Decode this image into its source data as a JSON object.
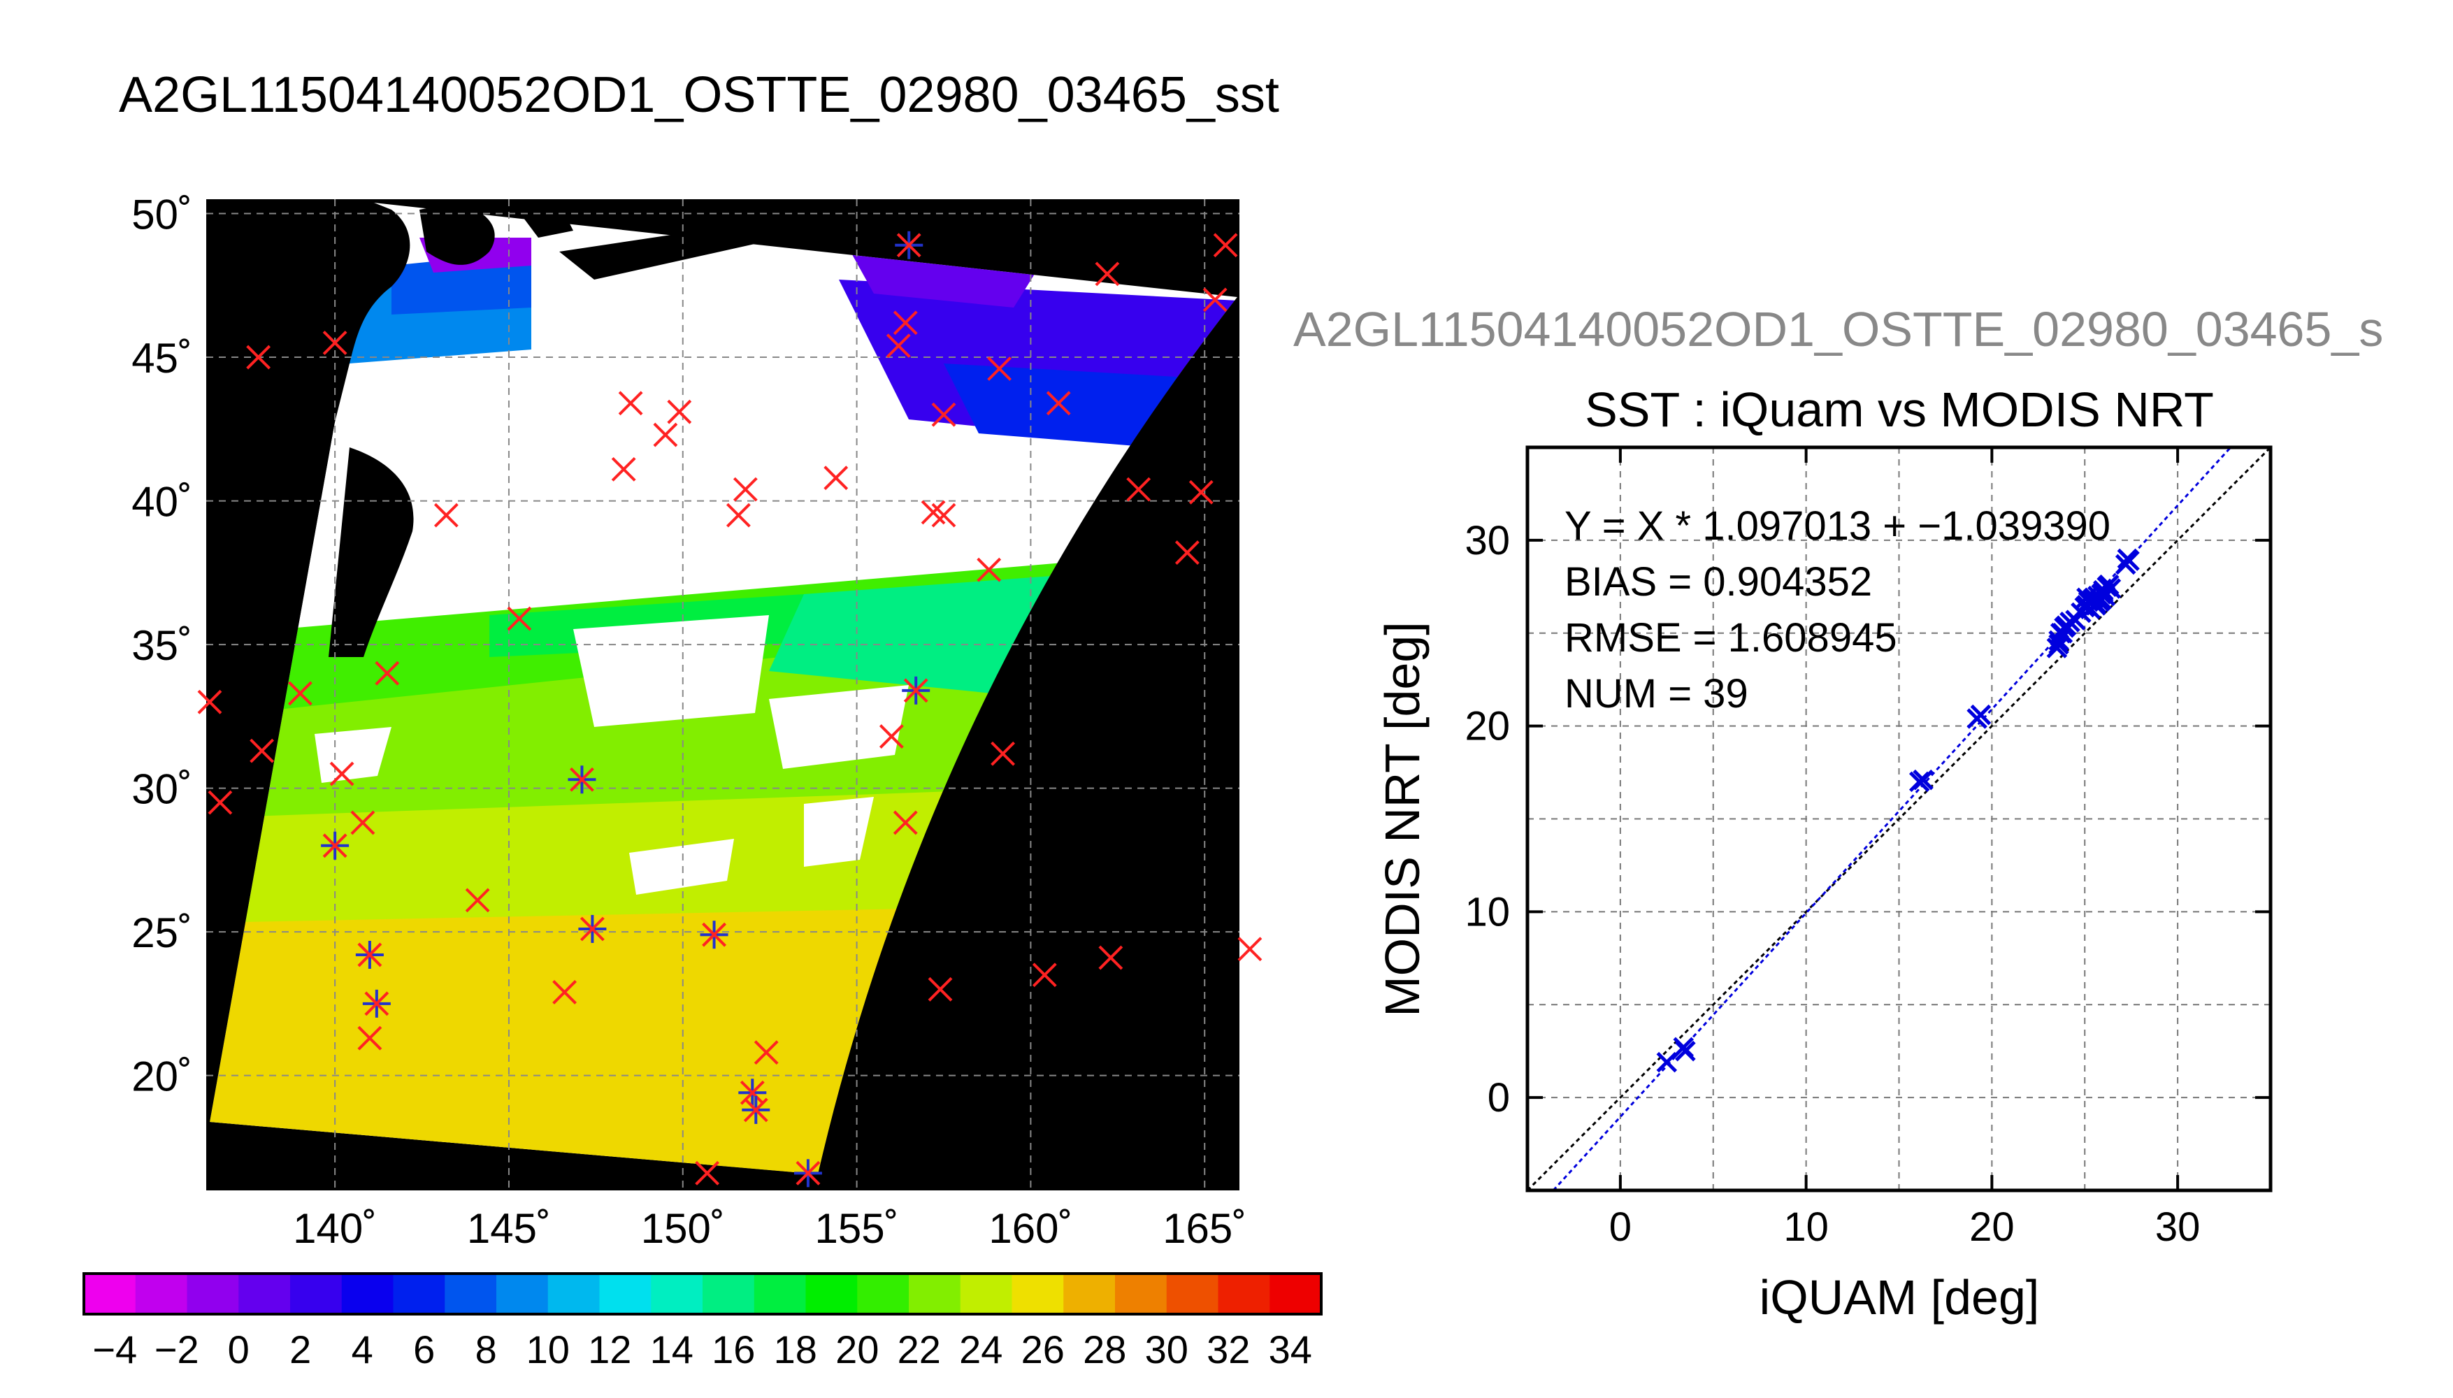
{
  "page": {
    "title": "A2GL11504140052OD1_OSTTE_02980_03465_sst"
  },
  "map": {
    "lat_ticks": [
      "50˚",
      "45˚",
      "40˚",
      "35˚",
      "30˚",
      "25˚",
      "20˚"
    ],
    "lon_ticks": [
      "140˚",
      "145˚",
      "150˚",
      "155˚",
      "160˚",
      "165˚"
    ],
    "lat_values": [
      50,
      45,
      40,
      35,
      30,
      25,
      20
    ],
    "lon_values": [
      140,
      145,
      150,
      155,
      160,
      165
    ],
    "lon_range": [
      136.3,
      166
    ],
    "lat_range": [
      16,
      50.5
    ],
    "colors": {
      "land": "#000000",
      "cloud": "#ffffff",
      "grid": "#888888",
      "marker_red": "#ff2222",
      "marker_blue": "#2233cc"
    }
  },
  "colorbar": {
    "labels": [
      "−4",
      "−2",
      "0",
      "2",
      "4",
      "6",
      "8",
      "10",
      "12",
      "14",
      "16",
      "18",
      "20",
      "22",
      "24",
      "26",
      "28",
      "30",
      "32",
      "34"
    ],
    "colors": [
      "#ee00ee",
      "#c100ee",
      "#9100ee",
      "#6400ee",
      "#3700ee",
      "#0a00ee",
      "#0020ee",
      "#0055ee",
      "#0088ee",
      "#00b8ee",
      "#00e0ee",
      "#00eec1",
      "#00ee82",
      "#00ee40",
      "#00ee00",
      "#33ee00",
      "#82ee00",
      "#c1ee00",
      "#eee000",
      "#eeb000",
      "#ee8000",
      "#ee5000",
      "#ee2000",
      "#ee0000"
    ]
  },
  "subplot_header": {
    "text": "A2GL11504140052OD1_OSTTE_02980_03465_s"
  },
  "chart_data": {
    "type": "scatter",
    "title": "SST : iQuam vs MODIS NRT",
    "xlabel": "iQUAM [deg]",
    "ylabel": "MODIS NRT [deg]",
    "xlim": [
      -5,
      35
    ],
    "ylim": [
      -5,
      35
    ],
    "xticks": [
      0,
      10,
      20,
      30
    ],
    "yticks": [
      0,
      10,
      20,
      30
    ],
    "grid": true,
    "annotations": [
      "Y = X * 1.097013 + −1.039390",
      "BIAS = 0.904352",
      "RMSE = 1.608945",
      "NUM = 39"
    ],
    "fit": {
      "slope": 1.097013,
      "intercept": -1.03939
    },
    "points": {
      "x": [
        2.5,
        3.5,
        3.4,
        16.1,
        16.3,
        19.2,
        19.4,
        23.5,
        23.6,
        23.7,
        23.9,
        24.0,
        25.0,
        25.1,
        25.2,
        25.4,
        25.5,
        25.6,
        25.7,
        25.8,
        25.9,
        26.0,
        26.1,
        26.2,
        26.3,
        27.2,
        27.4,
        25.3,
        24.5,
        24.8,
        25.6,
        26.4,
        23.8,
        25.1,
        26.0,
        27.3,
        24.2,
        25.9,
        23.6
      ],
      "y": [
        1.9,
        2.5,
        2.7,
        17.0,
        17.1,
        20.4,
        20.6,
        24.2,
        24.6,
        25.0,
        25.3,
        25.4,
        26.4,
        26.5,
        26.7,
        26.8,
        26.9,
        26.6,
        27.0,
        26.7,
        27.1,
        27.3,
        27.0,
        27.5,
        27.6,
        28.7,
        28.9,
        26.3,
        25.7,
        26.1,
        26.5,
        27.4,
        25.0,
        26.9,
        27.2,
        29.0,
        25.6,
        26.8,
        24.4
      ]
    },
    "colors": {
      "points": "#0000dd",
      "fit_line": "#0000dd",
      "identity_line": "#000000"
    }
  }
}
